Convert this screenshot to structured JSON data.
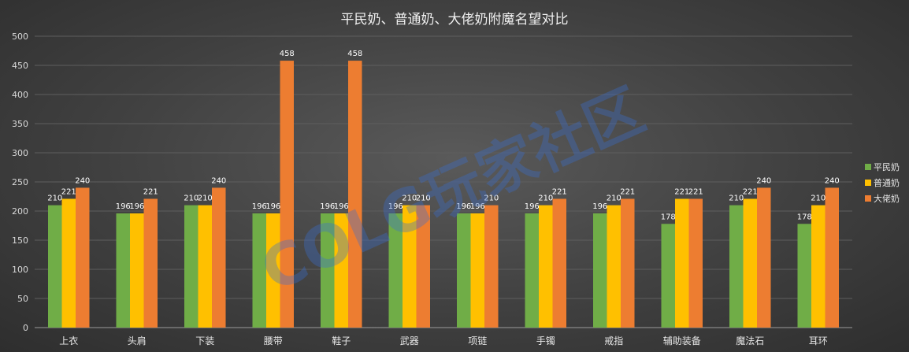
{
  "chart_data": {
    "type": "bar",
    "title": "平民奶、普通奶、大佬奶附魔名望对比",
    "categories": [
      "上衣",
      "头肩",
      "下装",
      "腰带",
      "鞋子",
      "武器",
      "项链",
      "手镯",
      "戒指",
      "辅助装备",
      "魔法石",
      "耳环"
    ],
    "series": [
      {
        "name": "平民奶",
        "color": "#70ad47",
        "values": [
          210,
          196,
          210,
          196,
          196,
          196,
          196,
          196,
          196,
          178,
          210,
          178
        ]
      },
      {
        "name": "普通奶",
        "color": "#ffc000",
        "values": [
          221,
          196,
          210,
          196,
          196,
          210,
          196,
          210,
          210,
          221,
          221,
          210
        ]
      },
      {
        "name": "大佬奶",
        "color": "#ed7d31",
        "values": [
          240,
          221,
          240,
          458,
          458,
          210,
          210,
          221,
          221,
          221,
          240,
          240
        ]
      }
    ],
    "yticks": [
      0,
      50,
      100,
      150,
      200,
      250,
      300,
      350,
      400,
      450,
      500
    ],
    "ylim": [
      0,
      500
    ],
    "xlabel": "",
    "ylabel": "",
    "legend": "right",
    "grid": true
  },
  "watermark": "COLG玩家社区"
}
